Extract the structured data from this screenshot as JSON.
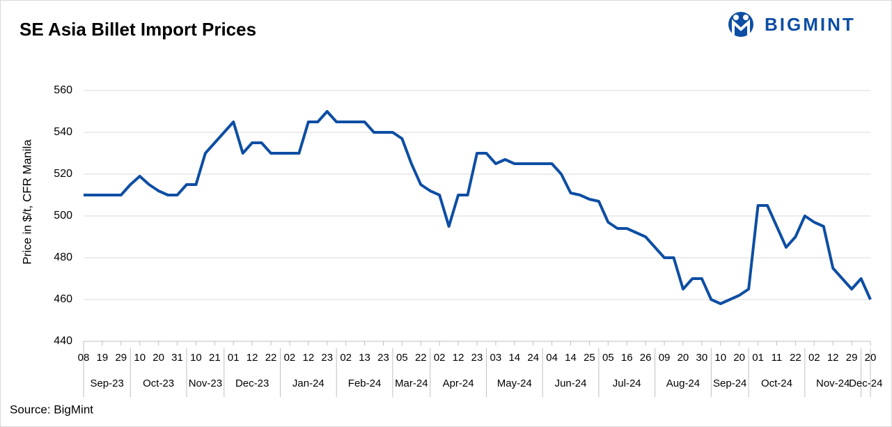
{
  "chart_data": {
    "type": "line",
    "title": "SE Asia Billet Import Prices",
    "logo": "BIGMINT",
    "source": "Source: BigMint",
    "y_label": "Price in $/t, CFR Manila",
    "ylim": [
      440,
      560
    ],
    "yticks": [
      440,
      460,
      480,
      500,
      520,
      540,
      560
    ],
    "grid": true,
    "categories": [
      "08",
      null,
      "19",
      null,
      "29",
      null,
      "10",
      null,
      "20",
      null,
      "31",
      null,
      "10",
      null,
      "21",
      null,
      "01",
      null,
      "12",
      null,
      "22",
      null,
      "02",
      null,
      "12",
      null,
      "23",
      null,
      "02",
      null,
      "13",
      null,
      "23",
      null,
      "05",
      null,
      "22",
      null,
      "02",
      null,
      "12",
      null,
      "23",
      null,
      "03",
      null,
      "14",
      null,
      "24",
      null,
      "04",
      null,
      "14",
      null,
      "25",
      null,
      "05",
      null,
      "16",
      null,
      "26",
      null,
      "09",
      null,
      "20",
      null,
      "30",
      null,
      "10",
      null,
      "20",
      null,
      "01",
      null,
      "11",
      null,
      "22",
      null,
      "02",
      null,
      "12",
      null,
      "29",
      null,
      "20"
    ],
    "x_groups": [
      {
        "label": "Sep-23",
        "span": 3
      },
      {
        "label": "Oct-23",
        "span": 3
      },
      {
        "label": "Nov-23",
        "span": 2
      },
      {
        "label": "Dec-23",
        "span": 3
      },
      {
        "label": "Jan-24",
        "span": 3
      },
      {
        "label": "Feb-24",
        "span": 3
      },
      {
        "label": "Mar-24",
        "span": 2
      },
      {
        "label": "Apr-24",
        "span": 3
      },
      {
        "label": "May-24",
        "span": 3
      },
      {
        "label": "Jun-24",
        "span": 3
      },
      {
        "label": "Jul-24",
        "span": 3
      },
      {
        "label": "Aug-24",
        "span": 3
      },
      {
        "label": "Sep-24",
        "span": 2
      },
      {
        "label": "Oct-24",
        "span": 3
      },
      {
        "label": "Nov-24",
        "span": 3
      },
      {
        "label": "Dec-24",
        "span": 1
      }
    ],
    "series": [
      {
        "name": "Price",
        "color": "#0d4ea3",
        "values": [
          510,
          510,
          510,
          510,
          510,
          515,
          519,
          515,
          512,
          510,
          510,
          515,
          515,
          530,
          535,
          540,
          545,
          530,
          535,
          535,
          530,
          530,
          530,
          530,
          545,
          545,
          550,
          545,
          545,
          545,
          545,
          540,
          540,
          540,
          537,
          525,
          515,
          512,
          510,
          495,
          510,
          510,
          530,
          530,
          525,
          527,
          525,
          525,
          525,
          525,
          525,
          520,
          511,
          510,
          508,
          507,
          497,
          494,
          494,
          492,
          490,
          485,
          480,
          480,
          465,
          470,
          470,
          460,
          458,
          460,
          462,
          465,
          505,
          505,
          495,
          485,
          490,
          500,
          497,
          495,
          475,
          470,
          465,
          470,
          460
        ]
      }
    ]
  }
}
